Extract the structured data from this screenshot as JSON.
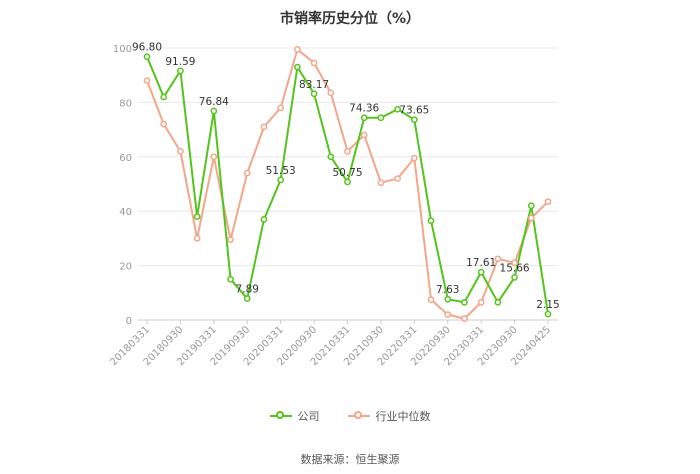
{
  "title": "市销率历史分位（%）",
  "source": "数据来源：恒生聚源",
  "colors": {
    "company": "#52c41a",
    "industry": "#f4875c",
    "grid": "#e8e8e8",
    "axis": "#999999"
  },
  "chart_data": {
    "type": "line",
    "title": "市销率历史分位（%）",
    "ylim": [
      0,
      100
    ],
    "yticks": [
      0,
      20,
      40,
      60,
      80,
      100
    ],
    "grid": true,
    "legend_position": "bottom",
    "x": [
      "20180331",
      "20180630",
      "20180930",
      "20181231",
      "20190331",
      "20190630",
      "20190930",
      "20191231",
      "20200331",
      "20200630",
      "20200930",
      "20201231",
      "20210331",
      "20210630",
      "20210930",
      "20211231",
      "20220331",
      "20220630",
      "20220930",
      "20221231",
      "20230331",
      "20230630",
      "20230930",
      "20231231",
      "20240425"
    ],
    "xtick_labels": [
      "20180331",
      "20180930",
      "20190331",
      "20190930",
      "20200331",
      "20200930",
      "20210331",
      "20210930",
      "20220331",
      "20220930",
      "20230331",
      "20230930",
      "20240425"
    ],
    "series": [
      {
        "name": "公司",
        "values": [
          96.8,
          82,
          91.59,
          38,
          76.84,
          15,
          7.89,
          37,
          51.53,
          93,
          83.17,
          60,
          50.75,
          74.36,
          74.36,
          77.5,
          73.65,
          36.5,
          7.63,
          6.5,
          17.61,
          6.5,
          15.66,
          42,
          2.15
        ]
      },
      {
        "name": "行业中位数",
        "values": [
          88,
          72,
          62,
          30,
          60,
          29.5,
          54,
          71,
          78,
          99.5,
          94.5,
          83.5,
          62,
          68,
          50.5,
          52,
          59.5,
          7.5,
          2,
          0.5,
          6.5,
          22.5,
          21,
          37.5,
          43.5
        ]
      }
    ],
    "data_labels": [
      {
        "index": 0,
        "text": "96.80"
      },
      {
        "index": 2,
        "text": "91.59"
      },
      {
        "index": 4,
        "text": "76.84"
      },
      {
        "index": 6,
        "text": "7.89"
      },
      {
        "index": 8,
        "text": "51.53"
      },
      {
        "index": 10,
        "text": "83.17"
      },
      {
        "index": 12,
        "text": "50.75"
      },
      {
        "index": 13,
        "text": "74.36"
      },
      {
        "index": 16,
        "text": "73.65"
      },
      {
        "index": 18,
        "text": "7.63"
      },
      {
        "index": 20,
        "text": "17.61"
      },
      {
        "index": 22,
        "text": "15.66"
      },
      {
        "index": 24,
        "text": "2.15"
      }
    ]
  }
}
